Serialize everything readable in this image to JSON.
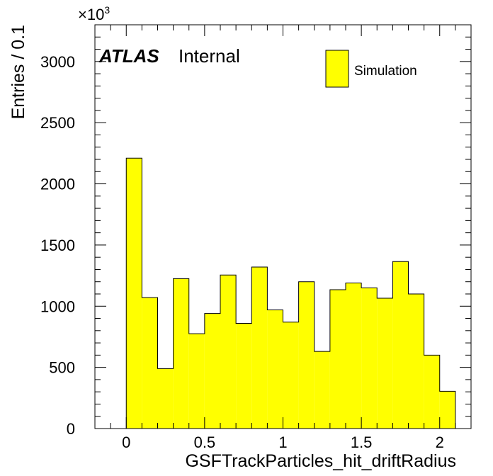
{
  "labels": {
    "atlas": "ATLAS",
    "status": "Internal",
    "multiplier": "×10",
    "multiplier_exp": "3"
  },
  "chart_data": {
    "type": "bar",
    "histogram": true,
    "xlabel": "GSFTrackParticles_hit_driftRadius",
    "ylabel": "Entries / 0.1",
    "xlim": [
      -0.2,
      2.2
    ],
    "ylim": [
      0,
      3300
    ],
    "y_unit_multiplier": 1000,
    "x_tick_labels": [
      "0",
      "0.5",
      "1",
      "1.5",
      "2"
    ],
    "x_tick_values": [
      0,
      0.5,
      1,
      1.5,
      2
    ],
    "y_tick_labels": [
      "0",
      "500",
      "1000",
      "1500",
      "2000",
      "2500",
      "3000"
    ],
    "y_tick_values": [
      0,
      500,
      1000,
      1500,
      2000,
      2500,
      3000
    ],
    "bin_width": 0.1,
    "bin_edges_start": 0,
    "series": [
      {
        "name": "Simulation",
        "color": "#ffff00",
        "values": [
          2210,
          1070,
          490,
          1225,
          775,
          940,
          1255,
          860,
          1320,
          970,
          870,
          1200,
          630,
          1135,
          1190,
          1150,
          1065,
          1365,
          1100,
          600,
          305
        ]
      }
    ],
    "legend": {
      "position": "top-right",
      "entries": [
        "Simulation"
      ]
    },
    "grid": false
  }
}
